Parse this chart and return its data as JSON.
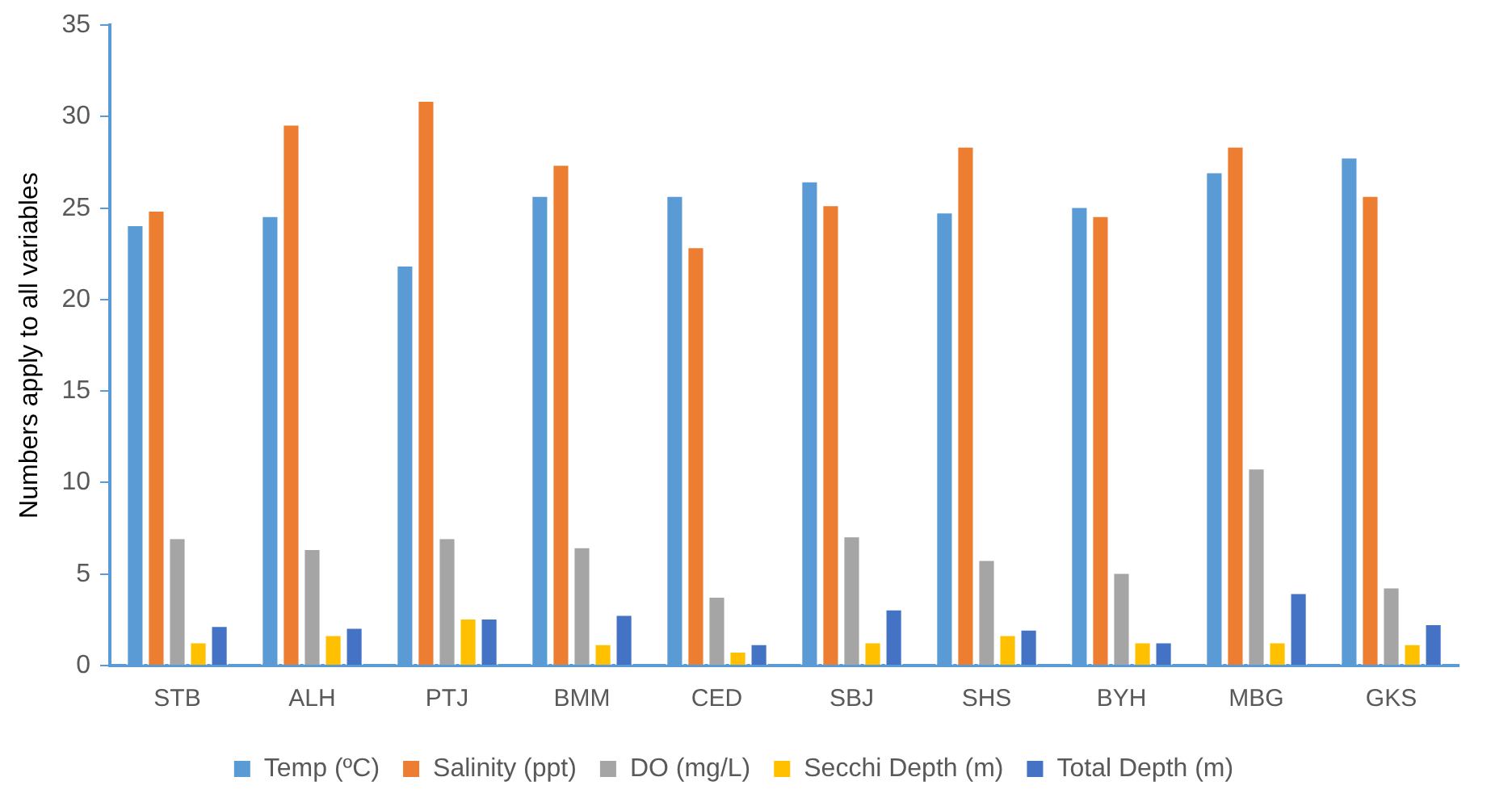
{
  "chart_data": {
    "type": "bar",
    "ylabel": "Numbers apply to all variables",
    "categories": [
      "STB",
      "ALH",
      "PTJ",
      "BMM",
      "CED",
      "SBJ",
      "SHS",
      "BYH",
      "MBG",
      "GKS"
    ],
    "series": [
      {
        "name": "Temp (ºC)",
        "color": "#5b9bd5",
        "values": [
          24.1,
          24.6,
          21.9,
          25.7,
          25.7,
          26.5,
          24.8,
          25.1,
          27.0,
          27.8
        ]
      },
      {
        "name": "Salinity (ppt)",
        "color": "#ed7d31",
        "values": [
          24.9,
          29.6,
          30.9,
          27.4,
          22.9,
          25.2,
          28.4,
          24.6,
          28.4,
          25.7
        ]
      },
      {
        "name": "DO (mg/L)",
        "color": "#a5a5a5",
        "values": [
          7.0,
          6.4,
          7.0,
          6.5,
          3.8,
          7.1,
          5.8,
          5.1,
          10.8,
          4.3
        ]
      },
      {
        "name": "Secchi Depth (m)",
        "color": "#ffc000",
        "values": [
          1.3,
          1.7,
          2.6,
          1.2,
          0.8,
          1.3,
          1.7,
          1.3,
          1.3,
          1.2
        ]
      },
      {
        "name": "Total Depth (m)",
        "color": "#4472c4",
        "values": [
          2.2,
          2.1,
          2.6,
          2.8,
          1.2,
          3.1,
          2.0,
          1.3,
          4.0,
          2.3
        ]
      }
    ],
    "ylim": [
      0,
      35
    ],
    "yticks": [
      0,
      5,
      10,
      15,
      20,
      25,
      30,
      35
    ],
    "grid": false,
    "legend": "bottom"
  }
}
